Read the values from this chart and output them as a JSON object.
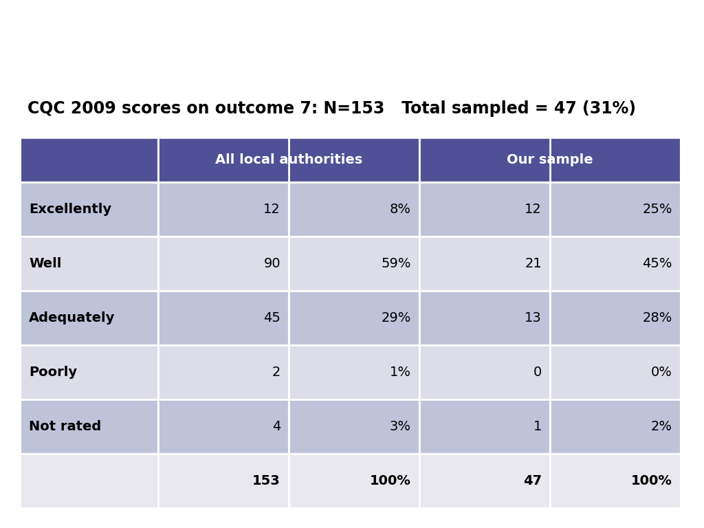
{
  "title": "CQC 2009 scores on outcome 7: N=153   Total sampled = 47 (31%)",
  "title_fontsize": 17,
  "header_color": "#4f5096",
  "header_text_color": "#ffffff",
  "row_labels": [
    "Excellently",
    "Well",
    "Adequately",
    "Poorly",
    "Not rated",
    ""
  ],
  "all_local_n": [
    "12",
    "90",
    "45",
    "2",
    "4",
    "153"
  ],
  "all_local_pct": [
    "8%",
    "59%",
    "29%",
    "1%",
    "3%",
    "100%"
  ],
  "our_sample_n": [
    "12",
    "21",
    "13",
    "0",
    "1",
    "47"
  ],
  "our_sample_pct": [
    "25%",
    "45%",
    "28%",
    "0%",
    "2%",
    "100%"
  ],
  "row_colors": [
    "#bfc3d9",
    "#dcdde8",
    "#bfc3d9",
    "#dcdde8",
    "#bfc3d9",
    "#e8e8ee"
  ],
  "label_col_color": [
    "#ffffff",
    "#dcdde8",
    "#ffffff",
    "#dcdde8",
    "#ffffff",
    "#e8e8ee"
  ],
  "background_color": "#ffffff"
}
